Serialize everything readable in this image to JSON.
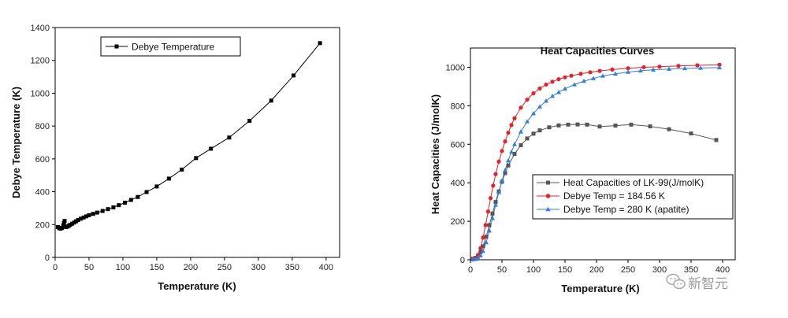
{
  "chart_data": [
    {
      "type": "line",
      "title": "",
      "xlabel": "Temperature (K)",
      "ylabel": "Debye Temperature (K)",
      "xlim": [
        0,
        420
      ],
      "ylim": [
        0,
        1400
      ],
      "xticks": [
        0,
        50,
        100,
        150,
        200,
        250,
        300,
        350,
        400
      ],
      "yticks": [
        0,
        200,
        400,
        600,
        800,
        1000,
        1200,
        1400
      ],
      "legend_position": "top-left",
      "grid": false,
      "series": [
        {
          "name": "Debye Temperature",
          "color": "#000000",
          "marker": "square",
          "x": [
            4,
            6,
            8,
            10,
            12,
            13,
            14,
            16,
            18,
            20,
            22,
            25,
            28,
            31,
            34,
            38,
            42,
            46,
            50,
            56,
            62,
            70,
            78,
            86,
            94,
            103,
            112,
            122,
            135,
            150,
            168,
            187,
            208,
            230,
            257,
            287,
            319,
            352,
            391
          ],
          "y": [
            185,
            178,
            175,
            180,
            195,
            210,
            222,
            185,
            188,
            192,
            198,
            205,
            212,
            220,
            228,
            236,
            243,
            250,
            257,
            265,
            273,
            283,
            294,
            305,
            318,
            333,
            350,
            368,
            398,
            432,
            480,
            535,
            605,
            662,
            730,
            832,
            955,
            1108,
            1305
          ]
        }
      ]
    },
    {
      "type": "line",
      "title": "Heat Capacities Curves",
      "xlabel": "Temperature (K)",
      "ylabel": "Heat Capacities (J/molK)",
      "xlim": [
        0,
        420
      ],
      "ylim": [
        0,
        1100
      ],
      "xticks": [
        0,
        50,
        100,
        150,
        200,
        250,
        300,
        350,
        400
      ],
      "yticks": [
        0,
        200,
        400,
        600,
        800,
        1000
      ],
      "legend_position": "center-right",
      "grid": false,
      "series": [
        {
          "name": "Heat Capacities of LK-99(J/molK)",
          "color": "#555555",
          "marker": "square",
          "x": [
            4,
            8,
            12,
            16,
            20,
            25,
            30,
            35,
            40,
            45,
            50,
            55,
            60,
            70,
            80,
            90,
            100,
            110,
            125,
            140,
            155,
            170,
            185,
            205,
            230,
            255,
            285,
            315,
            350,
            390
          ],
          "y": [
            5,
            10,
            20,
            40,
            70,
            120,
            180,
            240,
            300,
            355,
            405,
            450,
            490,
            550,
            595,
            630,
            655,
            672,
            688,
            698,
            702,
            703,
            702,
            692,
            697,
            702,
            693,
            678,
            656,
            622
          ]
        },
        {
          "name": "Debye Temp = 184.56 K",
          "color": "#e8202a",
          "marker": "circle",
          "x": [
            4,
            8,
            12,
            16,
            20,
            24,
            28,
            32,
            36,
            40,
            45,
            50,
            55,
            60,
            65,
            70,
            80,
            90,
            100,
            110,
            120,
            130,
            140,
            150,
            160,
            175,
            190,
            205,
            225,
            250,
            275,
            300,
            330,
            360,
            395
          ],
          "y": [
            2,
            8,
            25,
            60,
            115,
            180,
            250,
            320,
            385,
            445,
            510,
            565,
            615,
            660,
            700,
            735,
            790,
            832,
            865,
            890,
            910,
            925,
            938,
            948,
            956,
            966,
            974,
            981,
            988,
            995,
            1000,
            1003,
            1007,
            1010,
            1013
          ]
        },
        {
          "name": "Debye Temp = 280 K (apatite)",
          "color": "#2f7fe0",
          "marker": "triangle",
          "x": [
            4,
            8,
            12,
            16,
            20,
            25,
            30,
            35,
            40,
            45,
            50,
            55,
            60,
            65,
            70,
            80,
            90,
            100,
            110,
            120,
            130,
            140,
            150,
            165,
            180,
            195,
            210,
            230,
            250,
            270,
            290,
            315,
            340,
            365,
            395
          ],
          "y": [
            1,
            3,
            9,
            22,
            45,
            90,
            150,
            215,
            285,
            350,
            410,
            465,
            515,
            560,
            600,
            665,
            718,
            760,
            795,
            825,
            850,
            870,
            888,
            910,
            928,
            942,
            955,
            966,
            975,
            982,
            987,
            991,
            994,
            996,
            998
          ]
        }
      ]
    }
  ],
  "watermark": {
    "text": "新智元",
    "icon": "wechat-icon"
  }
}
